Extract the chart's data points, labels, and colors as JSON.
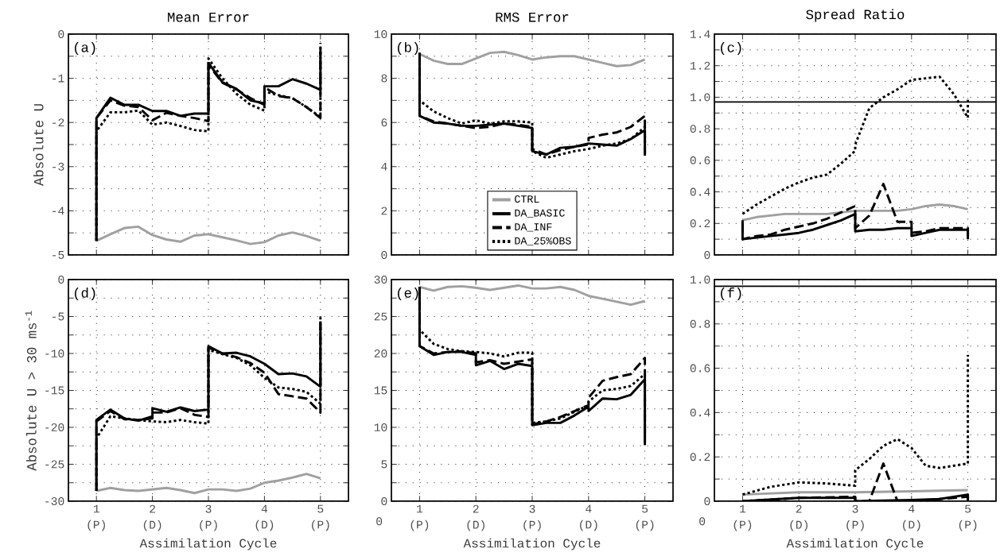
{
  "chart_data": [
    {
      "type": "line",
      "title": "Mean Error",
      "ylabel": "Absolute U",
      "annotations": [
        "(a)"
      ],
      "xlim": [
        0.5,
        5.5
      ],
      "ylim": [
        -5,
        0
      ],
      "xticks": [
        1,
        2,
        3,
        4,
        5
      ],
      "yticks": [
        -5,
        {
          "value": -4.5,
          "label": null
        },
        -4,
        {
          "value": -3.5,
          "label": null
        },
        -3,
        {
          "value": -2.5,
          "label": null
        },
        -2,
        {
          "value": -1.5,
          "label": null
        },
        -1,
        {
          "value": -0.5,
          "label": null
        },
        0
      ],
      "grid": true,
      "tick_labels": "y",
      "series": [
        {
          "type": "line",
          "color": "#a0a0a0",
          "line_style": "solid",
          "x": [
            1,
            1.25,
            1.5,
            1.75,
            2,
            2.25,
            2.5,
            2.75,
            3,
            3.25,
            3.5,
            3.75,
            4,
            4.25,
            4.5,
            4.75,
            5
          ],
          "values": [
            -4.68,
            -4.53,
            -4.39,
            -4.36,
            -4.55,
            -4.65,
            -4.7,
            -4.56,
            -4.53,
            -4.6,
            -4.67,
            -4.75,
            -4.71,
            -4.56,
            -4.49,
            -4.57,
            -4.68
          ]
        },
        {
          "type": "line",
          "color": "#000000",
          "line_style": "solid",
          "x": [
            1,
            1,
            1.25,
            1.5,
            1.75,
            2,
            2.25,
            2.5,
            2.75,
            3,
            3,
            3.25,
            3.5,
            3.75,
            4,
            4,
            4.25,
            4.5,
            4.75,
            5,
            5
          ],
          "values": [
            -4.68,
            -1.9,
            -1.44,
            -1.6,
            -1.6,
            -1.74,
            -1.74,
            -1.85,
            -1.8,
            -1.8,
            -0.65,
            -1.09,
            -1.24,
            -1.5,
            -1.57,
            -1.18,
            -1.18,
            -1.02,
            -1.12,
            -1.26,
            -0.4
          ]
        },
        {
          "type": "line",
          "color": "#000000",
          "line_style": "dashed",
          "x": [
            1,
            1,
            1.25,
            1.5,
            1.75,
            2,
            2.25,
            2.5,
            2.75,
            3,
            3,
            3.25,
            3.5,
            3.75,
            4,
            4,
            4.25,
            4.5,
            4.75,
            5,
            5
          ],
          "values": [
            -4.68,
            -1.9,
            -1.5,
            -1.62,
            -1.65,
            -1.95,
            -1.78,
            -1.85,
            -1.9,
            -1.97,
            -0.7,
            -1.1,
            -1.25,
            -1.45,
            -1.6,
            -1.2,
            -1.4,
            -1.45,
            -1.65,
            -1.9,
            -0.3
          ]
        },
        {
          "type": "line",
          "color": "#000000",
          "line_style": "dotted",
          "x": [
            1,
            1,
            1.25,
            1.5,
            1.75,
            2,
            2.25,
            2.5,
            2.75,
            3,
            3,
            3.25,
            3.5,
            3.75,
            4,
            4,
            4.25,
            4.5,
            4.75,
            5,
            5
          ],
          "values": [
            -4.68,
            -2.2,
            -1.77,
            -1.77,
            -1.73,
            -2.05,
            -2.0,
            -2.08,
            -2.17,
            -2.2,
            -0.55,
            -1.0,
            -1.35,
            -1.6,
            -1.73,
            -1.3,
            -1.38,
            -1.45,
            -1.65,
            -1.88,
            -0.2
          ]
        }
      ]
    },
    {
      "type": "line",
      "title": "RMS Error",
      "annotations": [
        "(b)"
      ],
      "xlim": [
        0.5,
        5.5
      ],
      "ylim": [
        0,
        10
      ],
      "xticks": [
        1,
        2,
        3,
        4,
        5
      ],
      "yticks": [
        0,
        {
          "value": 1,
          "label": null
        },
        2,
        {
          "value": 3,
          "label": null
        },
        4,
        {
          "value": 5,
          "label": null
        },
        6,
        {
          "value": 7,
          "label": null
        },
        8,
        {
          "value": 9,
          "label": null
        },
        10
      ],
      "grid": true,
      "tick_labels": "y",
      "legend": "bottom",
      "series": [
        {
          "type": "line",
          "name": "CTRL",
          "color": "#a0a0a0",
          "line_style": "solid",
          "x": [
            1,
            1.25,
            1.5,
            1.75,
            2,
            2.25,
            2.5,
            2.75,
            3,
            3.25,
            3.5,
            3.75,
            4,
            4.25,
            4.5,
            4.75,
            5
          ],
          "values": [
            9.1,
            8.8,
            8.65,
            8.65,
            8.9,
            9.15,
            9.2,
            9.05,
            8.85,
            8.95,
            9.0,
            9.0,
            8.85,
            8.7,
            8.55,
            8.6,
            8.85
          ]
        },
        {
          "type": "line",
          "name": "DA_BASIC",
          "color": "#000000",
          "line_style": "solid",
          "x": [
            1,
            1,
            1.25,
            1.5,
            1.75,
            2,
            2.25,
            2.5,
            2.75,
            3,
            3,
            3.25,
            3.5,
            3.75,
            4,
            4,
            4.25,
            4.5,
            4.75,
            5,
            5
          ],
          "values": [
            9.15,
            6.3,
            6.0,
            5.95,
            5.85,
            5.85,
            5.9,
            5.95,
            5.85,
            5.75,
            4.7,
            4.55,
            4.85,
            4.9,
            5.05,
            5.05,
            5.0,
            4.95,
            5.25,
            5.65,
            4.5
          ]
        },
        {
          "type": "line",
          "name": "DA_INF",
          "color": "#000000",
          "line_style": "dashed",
          "x": [
            1,
            1,
            1.25,
            1.5,
            1.75,
            2,
            2.25,
            2.5,
            2.75,
            3,
            3,
            3.25,
            3.5,
            3.75,
            4,
            4,
            4.25,
            4.5,
            4.75,
            5,
            5
          ],
          "values": [
            9.15,
            6.3,
            6.05,
            5.95,
            5.85,
            5.75,
            5.8,
            5.95,
            5.9,
            5.8,
            4.8,
            4.55,
            4.75,
            4.9,
            5.0,
            5.3,
            5.45,
            5.55,
            5.8,
            6.3,
            4.6
          ]
        },
        {
          "type": "line",
          "name": "DA_25%OBS",
          "color": "#000000",
          "line_style": "dotted",
          "x": [
            1,
            1,
            1.25,
            1.5,
            1.75,
            2,
            2.25,
            2.5,
            2.75,
            3,
            3,
            3.25,
            3.5,
            3.75,
            4,
            4,
            4.25,
            4.5,
            4.75,
            5,
            5
          ],
          "values": [
            9.15,
            7.0,
            6.5,
            6.2,
            5.95,
            6.1,
            5.95,
            6.05,
            6.05,
            6.0,
            4.7,
            4.4,
            4.55,
            4.7,
            4.8,
            4.8,
            4.95,
            5.05,
            5.25,
            5.8,
            4.55
          ]
        }
      ]
    },
    {
      "type": "line",
      "title": "Spread Ratio",
      "annotations": [
        "(c)"
      ],
      "xlim": [
        0.5,
        5.5
      ],
      "ylim": [
        0,
        1.4
      ],
      "xticks": [
        1,
        2,
        3,
        4,
        5
      ],
      "yticks": [
        0,
        {
          "value": 0.1,
          "label": null
        },
        0.2,
        {
          "value": 0.3,
          "label": null
        },
        0.4,
        {
          "value": 0.5,
          "label": null
        },
        0.6,
        {
          "value": 0.7,
          "label": null
        },
        0.8,
        {
          "value": 0.9,
          "label": null
        },
        {
          "value": 1,
          "label": "1.0"
        },
        {
          "value": 1.1,
          "label": null
        },
        1.2,
        {
          "value": 1.3,
          "label": null
        },
        1.4
      ],
      "grid": true,
      "tick_labels": "y",
      "ref_lines": [
        {
          "axis": "y",
          "value": 0.97,
          "color": "#000000"
        }
      ],
      "series": [
        {
          "type": "line",
          "color": "#a0a0a0",
          "line_style": "solid",
          "x": [
            1,
            1.25,
            1.5,
            1.75,
            2,
            2.25,
            2.5,
            2.75,
            3,
            3.25,
            3.5,
            3.75,
            4,
            4.25,
            4.5,
            4.75,
            5
          ],
          "values": [
            0.22,
            0.24,
            0.25,
            0.26,
            0.26,
            0.26,
            0.26,
            0.27,
            0.28,
            0.28,
            0.28,
            0.28,
            0.29,
            0.31,
            0.32,
            0.31,
            0.29
          ]
        },
        {
          "type": "line",
          "color": "#000000",
          "line_style": "solid",
          "x": [
            1,
            1,
            1.25,
            1.5,
            1.75,
            2,
            2.25,
            2.5,
            2.75,
            3,
            3,
            3.25,
            3.5,
            3.75,
            4,
            4,
            4.25,
            4.5,
            4.75,
            5,
            5
          ],
          "values": [
            0.22,
            0.1,
            0.11,
            0.12,
            0.13,
            0.14,
            0.16,
            0.19,
            0.22,
            0.26,
            0.15,
            0.16,
            0.16,
            0.17,
            0.17,
            0.12,
            0.14,
            0.16,
            0.16,
            0.16,
            0.1
          ]
        },
        {
          "type": "line",
          "color": "#000000",
          "line_style": "dashed",
          "x": [
            1,
            1,
            1.25,
            1.5,
            1.75,
            2,
            2.25,
            2.5,
            2.75,
            3,
            3,
            3.25,
            3.5,
            3.75,
            4,
            4,
            4.25,
            4.5,
            4.75,
            5,
            5
          ],
          "values": [
            0.2,
            0.1,
            0.12,
            0.13,
            0.16,
            0.18,
            0.2,
            0.23,
            0.27,
            0.31,
            0.17,
            0.25,
            0.45,
            0.21,
            0.21,
            0.14,
            0.15,
            0.17,
            0.17,
            0.17,
            0.12
          ]
        },
        {
          "type": "line",
          "color": "#000000",
          "line_style": "dotted",
          "x": [
            1,
            1,
            1.25,
            1.5,
            1.75,
            2,
            2.25,
            2.5,
            2.75,
            3,
            3,
            3.25,
            3.5,
            3.75,
            4,
            4,
            4.25,
            4.5,
            4.75,
            5,
            5
          ],
          "values": [
            0.26,
            0.26,
            0.32,
            0.37,
            0.42,
            0.46,
            0.49,
            0.51,
            0.58,
            0.66,
            0.7,
            0.93,
            1.0,
            1.05,
            1.11,
            1.11,
            1.12,
            1.13,
            1.02,
            0.87,
            1.0
          ]
        }
      ]
    },
    {
      "type": "line",
      "xlabel": "Assimilation Cycle",
      "ylabel": "Absolute U > 30 ms$^{-1}$",
      "annotations": [
        "(d)"
      ],
      "xlim": [
        0.5,
        5.5
      ],
      "ylim": [
        -30,
        0
      ],
      "xticks": [
        {
          "value": 1,
          "label": "1 (P)"
        },
        {
          "value": 2,
          "label": "2 (D)"
        },
        {
          "value": 3,
          "label": "3 (P)"
        },
        {
          "value": 4,
          "label": "4 (D)"
        },
        {
          "value": 5,
          "label": "5 (P)"
        }
      ],
      "yticks": [
        -30,
        {
          "value": -27.5,
          "label": null
        },
        -25,
        {
          "value": -22.5,
          "label": null
        },
        -20,
        {
          "value": -17.5,
          "label": null
        },
        -15,
        {
          "value": -12.5,
          "label": null
        },
        -10,
        {
          "value": -7.5,
          "label": null
        },
        -5,
        {
          "value": -2.5,
          "label": null
        },
        0
      ],
      "grid": true,
      "series": [
        {
          "type": "line",
          "color": "#a0a0a0",
          "line_style": "solid",
          "x": [
            1,
            1.25,
            1.5,
            1.75,
            2,
            2.25,
            2.5,
            2.75,
            3,
            3.25,
            3.5,
            3.75,
            4,
            4.25,
            4.5,
            4.75,
            5
          ],
          "values": [
            -28.6,
            -28.2,
            -28.5,
            -28.6,
            -28.4,
            -28.2,
            -28.5,
            -28.9,
            -28.4,
            -28.4,
            -28.6,
            -28.3,
            -27.5,
            -27.2,
            -26.8,
            -26.3,
            -26.9
          ]
        },
        {
          "type": "line",
          "color": "#000000",
          "line_style": "solid",
          "x": [
            1,
            1,
            1.25,
            1.5,
            1.75,
            2,
            2,
            2.25,
            2.5,
            2.75,
            3,
            3,
            3.25,
            3.5,
            3.75,
            4,
            4.25,
            4.5,
            4.75,
            5,
            5
          ],
          "values": [
            -28.6,
            -19.0,
            -17.6,
            -18.8,
            -19.1,
            -18.5,
            -17.4,
            -17.9,
            -17.3,
            -17.8,
            -17.6,
            -9.0,
            -10.0,
            -9.9,
            -10.4,
            -11.4,
            -12.8,
            -12.7,
            -13.1,
            -14.5,
            -6.0
          ]
        },
        {
          "type": "line",
          "color": "#000000",
          "line_style": "dashed",
          "x": [
            1,
            1,
            1.25,
            1.5,
            1.75,
            2,
            2,
            2.25,
            2.5,
            2.75,
            3,
            3,
            3.25,
            3.5,
            3.75,
            4,
            4.25,
            4.5,
            4.75,
            5,
            5
          ],
          "values": [
            -28.6,
            -19.2,
            -17.8,
            -18.9,
            -19.0,
            -18.8,
            -18.0,
            -18.0,
            -17.4,
            -18.3,
            -18.6,
            -9.2,
            -10.0,
            -10.5,
            -11.3,
            -12.6,
            -15.5,
            -15.8,
            -16.1,
            -18.0,
            -5.0
          ]
        },
        {
          "type": "line",
          "color": "#000000",
          "line_style": "dotted",
          "x": [
            1,
            1,
            1.25,
            1.5,
            1.75,
            2,
            2,
            2.25,
            2.5,
            2.75,
            3,
            3,
            3.25,
            3.5,
            3.75,
            4,
            4.25,
            4.5,
            4.75,
            5,
            5
          ],
          "values": [
            -28.6,
            -21.5,
            -18.5,
            -18.8,
            -19.0,
            -19.2,
            -19.2,
            -19.3,
            -19.0,
            -19.3,
            -19.5,
            -9.5,
            -10.1,
            -10.6,
            -11.6,
            -13.3,
            -14.6,
            -14.8,
            -15.2,
            -16.8,
            -4.9
          ]
        }
      ]
    },
    {
      "type": "line",
      "xlabel": "Assimilation Cycle",
      "annotations": [
        "(e)",
        "0"
      ],
      "xlim": [
        0.5,
        5.5
      ],
      "ylim": [
        0,
        30
      ],
      "xticks": [
        {
          "value": 1,
          "label": "1 (P)"
        },
        {
          "value": 2,
          "label": "2 (D)"
        },
        {
          "value": 3,
          "label": "3 (P)"
        },
        {
          "value": 4,
          "label": "4 (D)"
        },
        {
          "value": 5,
          "label": "5 (P)"
        }
      ],
      "yticks": [
        0,
        {
          "value": 2.5,
          "label": null
        },
        5,
        {
          "value": 7.5,
          "label": null
        },
        10,
        {
          "value": 12.5,
          "label": null
        },
        15,
        {
          "value": 17.5,
          "label": null
        },
        20,
        {
          "value": 22.5,
          "label": null
        },
        25,
        {
          "value": 27.5,
          "label": null
        },
        30
      ],
      "grid": true,
      "series": [
        {
          "type": "line",
          "color": "#a0a0a0",
          "line_style": "solid",
          "x": [
            1,
            1.25,
            1.5,
            1.75,
            2,
            2.25,
            2.5,
            2.75,
            3,
            3.25,
            3.5,
            3.75,
            4,
            4.25,
            4.5,
            4.75,
            5
          ],
          "values": [
            29.0,
            28.5,
            29.0,
            29.1,
            28.9,
            28.6,
            28.9,
            29.2,
            28.8,
            28.8,
            29.0,
            28.6,
            27.8,
            27.4,
            27.0,
            26.6,
            27.1
          ]
        },
        {
          "type": "line",
          "color": "#000000",
          "line_style": "solid",
          "x": [
            1,
            1,
            1.25,
            1.5,
            1.75,
            2,
            2,
            2.25,
            2.5,
            2.75,
            3,
            3,
            3.25,
            3.5,
            3.75,
            4,
            4,
            4.25,
            4.5,
            4.75,
            5,
            5
          ],
          "values": [
            29.0,
            21.0,
            19.8,
            20.2,
            20.2,
            19.8,
            18.4,
            19.0,
            17.9,
            18.6,
            18.3,
            10.3,
            10.6,
            10.6,
            11.6,
            12.8,
            12.2,
            13.9,
            13.8,
            14.4,
            16.5,
            7.6
          ]
        },
        {
          "type": "line",
          "color": "#000000",
          "line_style": "dashed",
          "x": [
            1,
            1,
            1.25,
            1.5,
            1.75,
            2,
            2,
            2.25,
            2.5,
            2.75,
            3,
            3,
            3.25,
            3.5,
            3.75,
            4,
            4,
            4.25,
            4.5,
            4.75,
            5,
            5
          ],
          "values": [
            29.0,
            21.0,
            20.0,
            20.2,
            20.3,
            20.0,
            18.8,
            19.1,
            18.6,
            18.9,
            19.2,
            10.4,
            10.8,
            11.4,
            12.2,
            13.0,
            14.0,
            16.3,
            16.8,
            17.2,
            19.4,
            8.4
          ]
        },
        {
          "type": "line",
          "color": "#000000",
          "line_style": "dotted",
          "x": [
            1,
            1,
            1.25,
            1.5,
            1.75,
            2,
            2,
            2.25,
            2.5,
            2.75,
            3,
            3,
            3.25,
            3.5,
            3.75,
            4,
            4,
            4.25,
            4.5,
            4.75,
            5,
            5
          ],
          "values": [
            29.0,
            23.2,
            21.3,
            20.6,
            20.3,
            20.2,
            20.2,
            20.0,
            19.6,
            20.1,
            20.1,
            10.6,
            10.8,
            11.2,
            12.1,
            13.0,
            13.5,
            15.0,
            15.2,
            15.6,
            17.2,
            7.6
          ]
        }
      ]
    },
    {
      "type": "line",
      "xlabel": "Assimilation Cycle",
      "annotations": [
        "(f)",
        "0"
      ],
      "xlim": [
        0.5,
        5.5
      ],
      "ylim": [
        0,
        1
      ],
      "xticks": [
        {
          "value": 1,
          "label": "1 (P)"
        },
        {
          "value": 2,
          "label": "2 (D)"
        },
        {
          "value": 3,
          "label": "3 (P)"
        },
        {
          "value": 4,
          "label": "4 (D)"
        },
        {
          "value": 5,
          "label": "5 (P)"
        }
      ],
      "yticks": [
        0,
        {
          "value": 0.1,
          "label": null
        },
        0.2,
        {
          "value": 0.3,
          "label": null
        },
        0.4,
        {
          "value": 0.5,
          "label": null
        },
        0.6,
        {
          "value": 0.7,
          "label": null
        },
        0.8,
        {
          "value": 0.9,
          "label": null
        },
        {
          "value": 1,
          "label": "1.0"
        }
      ],
      "grid": true,
      "ref_lines": [
        {
          "axis": "y",
          "value": 0.97,
          "color": "#000000"
        }
      ],
      "series": [
        {
          "type": "line",
          "color": "#a0a0a0",
          "line_style": "solid",
          "x": [
            1,
            2,
            3,
            4,
            5
          ],
          "values": [
            0.03,
            0.04,
            0.04,
            0.045,
            0.05
          ]
        },
        {
          "type": "line",
          "color": "#000000",
          "line_style": "solid",
          "x": [
            1,
            2,
            3,
            3,
            4,
            4.5,
            5,
            5
          ],
          "values": [
            0.0,
            0.015,
            0.015,
            0.0,
            0.005,
            0.01,
            0.03,
            0.0
          ]
        },
        {
          "type": "line",
          "color": "#000000",
          "line_style": "dashed",
          "x": [
            1,
            2,
            3,
            3,
            3.25,
            3.5,
            3.75,
            4,
            5,
            5
          ],
          "values": [
            0.0,
            0.015,
            0.02,
            0.0,
            0.0,
            0.17,
            0.0,
            0.0,
            0.02,
            0.0
          ]
        },
        {
          "type": "line",
          "color": "#000000",
          "line_style": "dotted",
          "x": [
            1,
            1.5,
            2,
            2.5,
            3,
            3,
            3.25,
            3.5,
            3.75,
            4,
            4.25,
            4.5,
            5,
            5
          ],
          "values": [
            0.03,
            0.065,
            0.085,
            0.08,
            0.07,
            0.14,
            0.19,
            0.25,
            0.28,
            0.24,
            0.16,
            0.15,
            0.17,
            0.66
          ]
        }
      ]
    }
  ]
}
